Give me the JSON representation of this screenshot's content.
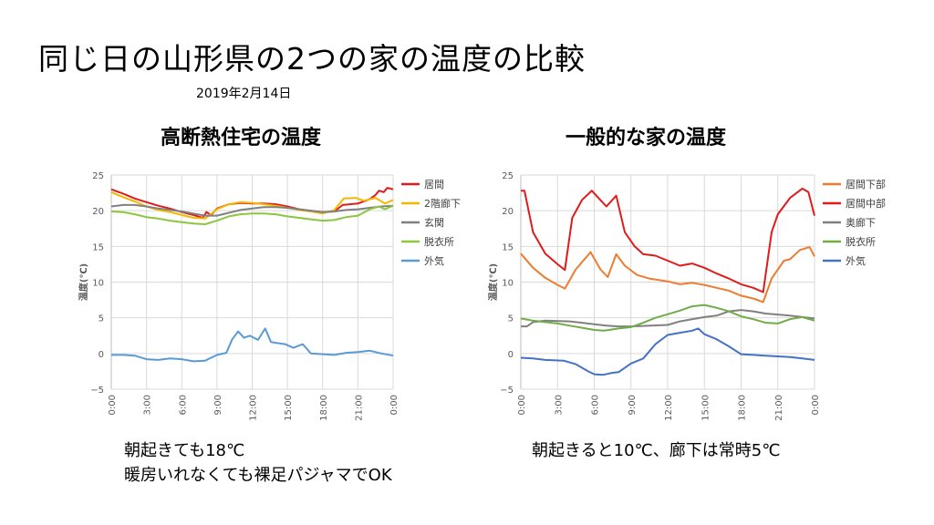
{
  "title": "同じ日の山形県の2つの家の温度の比較",
  "date": "2019年2月14日",
  "notes_left": [
    "朝起きても18℃",
    "暖房いれなくても裸足パジャマでOK"
  ],
  "notes_right": [
    "朝起きると10℃、廊下は常時5℃"
  ],
  "chart_data": [
    {
      "type": "line",
      "title": "高断熱住宅の温度",
      "ylabel": "温度(℃)",
      "ylim": [
        -5,
        25
      ],
      "yticks": [
        -5,
        0,
        5,
        10,
        15,
        20,
        25
      ],
      "xlim": [
        0,
        24
      ],
      "xticks": [
        "0:00",
        "3:00",
        "6:00",
        "9:00",
        "12:00",
        "15:00",
        "18:00",
        "21:00",
        "0:00"
      ],
      "grid": true,
      "legend": "right",
      "series": [
        {
          "name": "居間",
          "color": "#e01b1b",
          "points": [
            [
              0,
              23
            ],
            [
              1,
              22.4
            ],
            [
              2,
              21.7
            ],
            [
              3,
              21.2
            ],
            [
              4,
              20.7
            ],
            [
              5,
              20.3
            ],
            [
              6,
              19.8
            ],
            [
              7,
              19.4
            ],
            [
              7.8,
              19
            ],
            [
              8.1,
              19.8
            ],
            [
              8.5,
              19.4
            ],
            [
              9,
              20.3
            ],
            [
              10,
              20.9
            ],
            [
              11,
              21.1
            ],
            [
              12,
              21
            ],
            [
              13,
              21
            ],
            [
              14,
              20.9
            ],
            [
              15,
              20.6
            ],
            [
              16,
              20.2
            ],
            [
              17,
              20
            ],
            [
              18,
              19.8
            ],
            [
              19,
              19.9
            ],
            [
              19.7,
              20.8
            ],
            [
              21,
              21
            ],
            [
              22,
              21.6
            ],
            [
              22.5,
              22.2
            ],
            [
              22.8,
              22.8
            ],
            [
              23.2,
              22.6
            ],
            [
              23.5,
              23.2
            ],
            [
              24,
              23
            ]
          ]
        },
        {
          "name": "2階廊下",
          "color": "#f5b800",
          "points": [
            [
              0,
              22.6
            ],
            [
              1,
              21.9
            ],
            [
              2,
              21.3
            ],
            [
              3,
              20.6
            ],
            [
              4,
              20.1
            ],
            [
              5,
              19.8
            ],
            [
              6,
              19.4
            ],
            [
              7,
              19
            ],
            [
              8,
              18.9
            ],
            [
              9,
              20.2
            ],
            [
              10,
              20.9
            ],
            [
              11,
              21.2
            ],
            [
              12,
              21.1
            ],
            [
              13,
              20.9
            ],
            [
              14,
              20.7
            ],
            [
              15,
              20.4
            ],
            [
              16,
              20.1
            ],
            [
              17,
              19.9
            ],
            [
              18,
              19.6
            ],
            [
              19,
              20.1
            ],
            [
              19.8,
              21.7
            ],
            [
              20.8,
              21.8
            ],
            [
              21.5,
              21.4
            ],
            [
              22.5,
              21.8
            ],
            [
              23.3,
              21
            ],
            [
              24,
              21.5
            ]
          ]
        },
        {
          "name": "玄関",
          "color": "#808080",
          "points": [
            [
              0,
              20.6
            ],
            [
              1,
              20.8
            ],
            [
              2,
              20.8
            ],
            [
              3,
              20.6
            ],
            [
              4,
              20.3
            ],
            [
              5,
              20.1
            ],
            [
              6,
              19.9
            ],
            [
              7,
              19.6
            ],
            [
              8,
              19.3
            ],
            [
              9,
              19.3
            ],
            [
              10,
              19.7
            ],
            [
              11,
              20.1
            ],
            [
              12,
              20.3
            ],
            [
              13,
              20.5
            ],
            [
              14,
              20.5
            ],
            [
              15,
              20.4
            ],
            [
              16,
              20.2
            ],
            [
              17,
              20
            ],
            [
              18,
              19.8
            ],
            [
              19,
              19.9
            ],
            [
              20,
              20.1
            ],
            [
              21,
              20.2
            ],
            [
              22,
              20.4
            ],
            [
              23,
              20.6
            ],
            [
              24,
              20.7
            ]
          ]
        },
        {
          "name": "脱衣所",
          "color": "#8cc63f",
          "points": [
            [
              0,
              19.9
            ],
            [
              1,
              19.8
            ],
            [
              2,
              19.5
            ],
            [
              3,
              19.1
            ],
            [
              4,
              18.9
            ],
            [
              5,
              18.6
            ],
            [
              6,
              18.4
            ],
            [
              7,
              18.2
            ],
            [
              8,
              18.1
            ],
            [
              9,
              18.6
            ],
            [
              10,
              19.2
            ],
            [
              11,
              19.5
            ],
            [
              12,
              19.6
            ],
            [
              13,
              19.6
            ],
            [
              14,
              19.5
            ],
            [
              15,
              19.2
            ],
            [
              16,
              19
            ],
            [
              17,
              18.8
            ],
            [
              18,
              18.6
            ],
            [
              19,
              18.7
            ],
            [
              20,
              19.1
            ],
            [
              21,
              19.3
            ],
            [
              22,
              20.2
            ],
            [
              22.8,
              20.6
            ],
            [
              23.3,
              20.2
            ],
            [
              24,
              20.7
            ]
          ]
        },
        {
          "name": "外気",
          "color": "#5b9bd5",
          "points": [
            [
              0,
              -0.2
            ],
            [
              1,
              -0.2
            ],
            [
              2,
              -0.3
            ],
            [
              3,
              -0.8
            ],
            [
              4,
              -0.9
            ],
            [
              5,
              -0.7
            ],
            [
              6,
              -0.8
            ],
            [
              7,
              -1.1
            ],
            [
              8,
              -1
            ],
            [
              9,
              -0.2
            ],
            [
              9.8,
              0.1
            ],
            [
              10.3,
              2
            ],
            [
              10.8,
              3.1
            ],
            [
              11.3,
              2.2
            ],
            [
              11.8,
              2.5
            ],
            [
              12.5,
              1.9
            ],
            [
              13.1,
              3.5
            ],
            [
              13.6,
              1.6
            ],
            [
              14,
              1.5
            ],
            [
              14.8,
              1.3
            ],
            [
              15.5,
              0.8
            ],
            [
              16.3,
              1.3
            ],
            [
              17,
              0
            ],
            [
              18,
              -0.1
            ],
            [
              19,
              -0.2
            ],
            [
              20,
              0.1
            ],
            [
              21,
              0.2
            ],
            [
              22,
              0.4
            ],
            [
              23,
              0
            ],
            [
              24,
              -0.3
            ]
          ]
        }
      ]
    },
    {
      "type": "line",
      "title": "一般的な家の温度",
      "ylabel": "温度(℃)",
      "ylim": [
        -5,
        25
      ],
      "yticks": [
        -5,
        0,
        5,
        10,
        15,
        20,
        25
      ],
      "xlim": [
        0,
        24
      ],
      "xticks": [
        "0:00",
        "3:00",
        "6:00",
        "9:00",
        "12:00",
        "15:00",
        "18:00",
        "21:00",
        "0:00"
      ],
      "grid": true,
      "legend": "right",
      "series": [
        {
          "name": "居間下部",
          "color": "#ed7d31",
          "points": [
            [
              0,
              14
            ],
            [
              1,
              12
            ],
            [
              2,
              10.6
            ],
            [
              3,
              9.6
            ],
            [
              3.6,
              9.1
            ],
            [
              4.5,
              11.8
            ],
            [
              5.7,
              14.2
            ],
            [
              6.5,
              11.8
            ],
            [
              7.1,
              10.7
            ],
            [
              7.8,
              13.9
            ],
            [
              8.5,
              12.3
            ],
            [
              9.5,
              11
            ],
            [
              10.5,
              10.5
            ],
            [
              12,
              10.1
            ],
            [
              13,
              9.7
            ],
            [
              14,
              9.9
            ],
            [
              15,
              9.6
            ],
            [
              16,
              9.2
            ],
            [
              17,
              8.8
            ],
            [
              18,
              8.1
            ],
            [
              19,
              7.7
            ],
            [
              19.8,
              7.2
            ],
            [
              20.5,
              10.5
            ],
            [
              21.5,
              13
            ],
            [
              22,
              13.2
            ],
            [
              22.8,
              14.5
            ],
            [
              23.6,
              14.9
            ],
            [
              24,
              13.6
            ]
          ]
        },
        {
          "name": "居間中部",
          "color": "#e01b1b",
          "points": [
            [
              0,
              22.8
            ],
            [
              0.3,
              22.8
            ],
            [
              1,
              17
            ],
            [
              2,
              14
            ],
            [
              3,
              12.5
            ],
            [
              3.6,
              11.7
            ],
            [
              4.2,
              19
            ],
            [
              5,
              21.5
            ],
            [
              5.8,
              22.8
            ],
            [
              6.5,
              21.5
            ],
            [
              7,
              20.6
            ],
            [
              7.8,
              22.1
            ],
            [
              8.5,
              17
            ],
            [
              9.3,
              15
            ],
            [
              10,
              13.9
            ],
            [
              11,
              13.7
            ],
            [
              12,
              13
            ],
            [
              13,
              12.3
            ],
            [
              14,
              12.6
            ],
            [
              15,
              12
            ],
            [
              16,
              11.2
            ],
            [
              17,
              10.5
            ],
            [
              18,
              9.7
            ],
            [
              19,
              9.2
            ],
            [
              19.8,
              8.6
            ],
            [
              20.5,
              17
            ],
            [
              21,
              19.5
            ],
            [
              22,
              21.8
            ],
            [
              23,
              23.1
            ],
            [
              23.5,
              22.6
            ],
            [
              24,
              19.3
            ]
          ]
        },
        {
          "name": "奥廊下",
          "color": "#808080",
          "points": [
            [
              0,
              3.8
            ],
            [
              0.5,
              3.8
            ],
            [
              1,
              4.4
            ],
            [
              2,
              4.6
            ],
            [
              4,
              4.5
            ],
            [
              6,
              4.1
            ],
            [
              7,
              3.9
            ],
            [
              8,
              3.8
            ],
            [
              9,
              3.8
            ],
            [
              12,
              4
            ],
            [
              13,
              4.5
            ],
            [
              15,
              5.1
            ],
            [
              16,
              5.3
            ],
            [
              17,
              5.9
            ],
            [
              18,
              6.1
            ],
            [
              19,
              5.9
            ],
            [
              20,
              5.6
            ],
            [
              22,
              5.3
            ],
            [
              23,
              5.1
            ],
            [
              24,
              4.9
            ]
          ]
        },
        {
          "name": "脱衣所",
          "color": "#70ad47",
          "points": [
            [
              0,
              4.9
            ],
            [
              1,
              4.6
            ],
            [
              2,
              4.4
            ],
            [
              3,
              4.2
            ],
            [
              4,
              3.9
            ],
            [
              5,
              3.6
            ],
            [
              6,
              3.3
            ],
            [
              6.8,
              3.2
            ],
            [
              8,
              3.5
            ],
            [
              9,
              3.7
            ],
            [
              10,
              4.3
            ],
            [
              11,
              5
            ],
            [
              12,
              5.5
            ],
            [
              13,
              6
            ],
            [
              14,
              6.6
            ],
            [
              15,
              6.8
            ],
            [
              16,
              6.4
            ],
            [
              17,
              5.9
            ],
            [
              18,
              5.2
            ],
            [
              19,
              4.8
            ],
            [
              20,
              4.3
            ],
            [
              21,
              4.2
            ],
            [
              22,
              4.8
            ],
            [
              23,
              5.1
            ],
            [
              24,
              4.6
            ]
          ]
        },
        {
          "name": "外気",
          "color": "#4472c4",
          "points": [
            [
              0,
              -0.6
            ],
            [
              1,
              -0.7
            ],
            [
              2,
              -0.9
            ],
            [
              3.5,
              -1
            ],
            [
              4.5,
              -1.5
            ],
            [
              5.5,
              -2.5
            ],
            [
              6,
              -2.9
            ],
            [
              6.7,
              -3
            ],
            [
              7.5,
              -2.7
            ],
            [
              8,
              -2.6
            ],
            [
              9,
              -1.4
            ],
            [
              10,
              -0.7
            ],
            [
              11,
              1.3
            ],
            [
              12,
              2.6
            ],
            [
              13,
              2.9
            ],
            [
              14,
              3.2
            ],
            [
              14.5,
              3.5
            ],
            [
              15,
              2.7
            ],
            [
              16,
              2
            ],
            [
              17,
              1
            ],
            [
              18,
              -0.1
            ],
            [
              19,
              -0.2
            ],
            [
              20,
              -0.3
            ],
            [
              21,
              -0.4
            ],
            [
              22,
              -0.5
            ],
            [
              23,
              -0.7
            ],
            [
              24,
              -0.9
            ]
          ]
        }
      ]
    }
  ]
}
